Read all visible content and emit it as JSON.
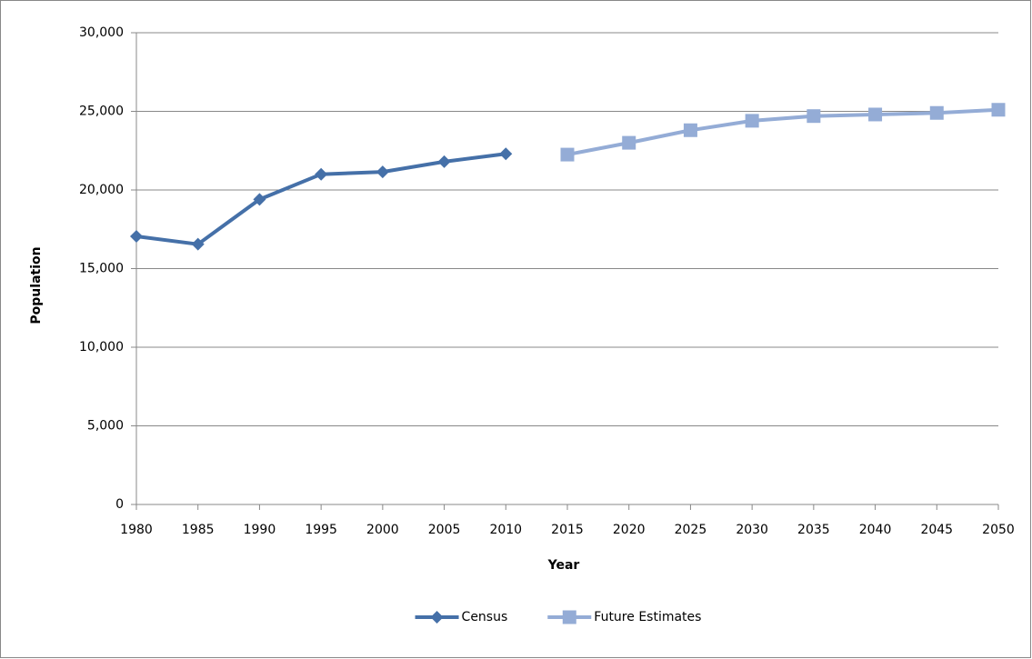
{
  "chart_data": {
    "type": "line",
    "x_label": "Year",
    "y_label": "Population",
    "x": [
      1980,
      1985,
      1990,
      1995,
      2000,
      2005,
      2010,
      2015,
      2020,
      2025,
      2030,
      2035,
      2040,
      2045,
      2050
    ],
    "series": [
      {
        "name": "Census",
        "color": "#4570a8",
        "marker": "diamond",
        "values": [
          17050,
          16550,
          19400,
          21000,
          21150,
          21800,
          22300,
          null,
          null,
          null,
          null,
          null,
          null,
          null,
          null
        ]
      },
      {
        "name": "Future Estimates",
        "color": "#94acd6",
        "marker": "square",
        "values": [
          null,
          null,
          null,
          null,
          null,
          null,
          null,
          22250,
          23000,
          23800,
          24400,
          24700,
          24800,
          24900,
          25100
        ]
      }
    ],
    "xlim": [
      1980,
      2050
    ],
    "xticks": [
      1980,
      1985,
      1990,
      1995,
      2000,
      2005,
      2010,
      2015,
      2020,
      2025,
      2030,
      2035,
      2040,
      2045,
      2050
    ],
    "ylim": [
      0,
      30000
    ],
    "yticks": [
      0,
      {
        "value": 5000,
        "label": "5,000"
      },
      {
        "value": 10000,
        "label": "10,000"
      },
      {
        "value": 15000,
        "label": "15,000"
      },
      {
        "value": 20000,
        "label": "20,000"
      },
      {
        "value": 25000,
        "label": "25,000"
      },
      {
        "value": 30000,
        "label": "30,000"
      }
    ],
    "grid": true,
    "legend": "bottom"
  }
}
